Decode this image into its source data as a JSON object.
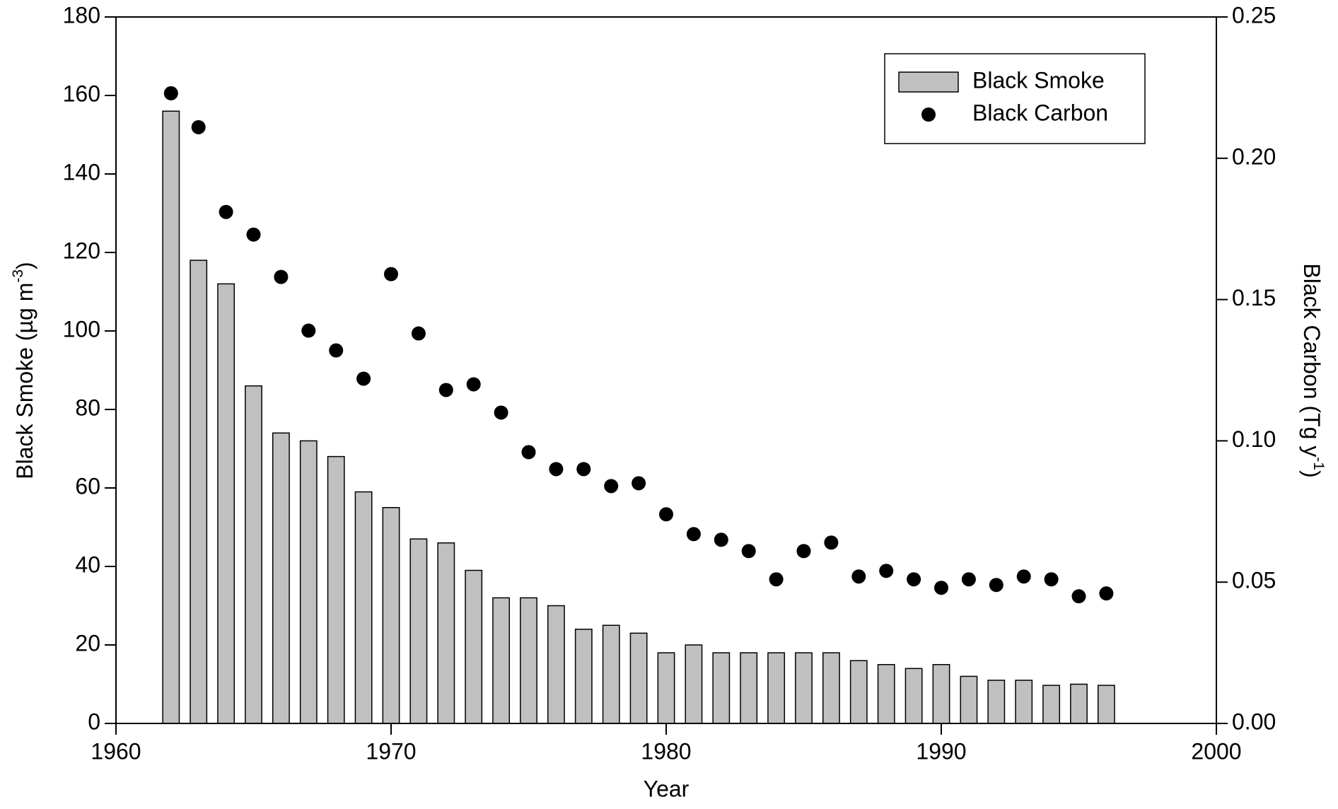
{
  "chart_data": {
    "type": "bar-scatter",
    "x_label": "Year",
    "y_label": "Black Smoke (µg m",
    "y_label_sup": "-3",
    "y_label_end": ")",
    "y2_label": "Black Carbon (Tg y",
    "y2_label_sup": "-1",
    "y2_label_end": ")",
    "x": [
      1962,
      1963,
      1964,
      1965,
      1966,
      1967,
      1968,
      1969,
      1970,
      1971,
      1972,
      1973,
      1974,
      1975,
      1976,
      1977,
      1978,
      1979,
      1980,
      1981,
      1982,
      1983,
      1984,
      1985,
      1986,
      1987,
      1988,
      1989,
      1990,
      1991,
      1992,
      1993,
      1994,
      1995,
      1996
    ],
    "series": [
      {
        "name": "Black Smoke",
        "kind": "bar",
        "color": "#c0c0c0",
        "values": [
          156,
          118,
          112,
          86,
          74,
          72,
          68,
          59,
          55,
          47,
          46,
          39,
          32,
          32,
          30,
          24,
          25,
          23,
          18,
          20,
          18,
          18,
          18,
          18,
          18,
          16,
          15,
          14,
          15,
          12,
          11,
          11,
          9.7,
          10,
          9.7
        ]
      },
      {
        "name": "Black Carbon",
        "kind": "scatter",
        "axis": "y2",
        "color": "#000000",
        "values": [
          0.223,
          0.211,
          0.181,
          0.173,
          0.158,
          0.139,
          0.132,
          0.122,
          0.159,
          0.138,
          0.118,
          0.12,
          0.11,
          0.096,
          0.09,
          0.09,
          0.084,
          0.085,
          0.074,
          0.067,
          0.065,
          0.061,
          0.051,
          0.061,
          0.064,
          0.052,
          0.054,
          0.051,
          0.048,
          0.051,
          0.049,
          0.052,
          0.051,
          0.045,
          0.046
        ]
      }
    ],
    "xlim": [
      1960,
      2000
    ],
    "xticks": [
      1960,
      1970,
      1980,
      1990,
      2000
    ],
    "ylim": [
      0,
      180
    ],
    "yticks": [
      0,
      20,
      40,
      60,
      80,
      100,
      120,
      140,
      160,
      180
    ],
    "y2lim": [
      0,
      0.25
    ],
    "y2ticks": [
      {
        "value": 0,
        "label": "0.00"
      },
      {
        "value": 0.05,
        "label": "0.05"
      },
      {
        "value": 0.1,
        "label": "0.10"
      },
      {
        "value": 0.15,
        "label": "0.15"
      },
      {
        "value": 0.2,
        "label": "0.20"
      },
      {
        "value": 0.25,
        "label": "0.25"
      }
    ],
    "legend": "upper right"
  }
}
